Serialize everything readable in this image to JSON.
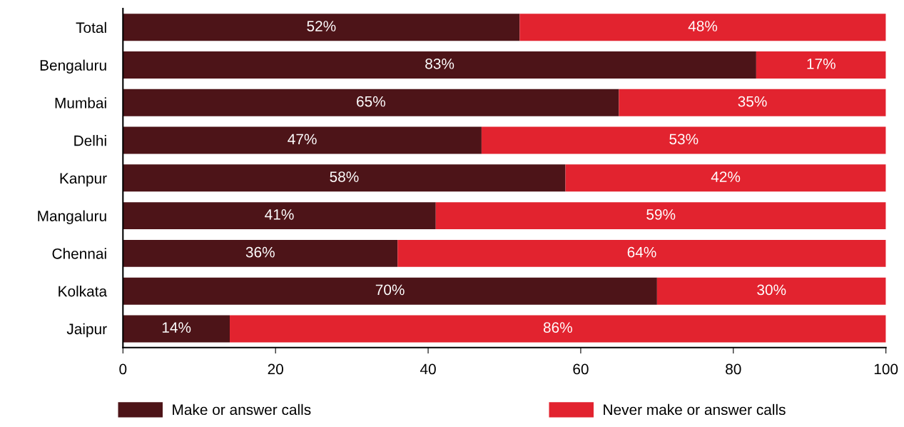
{
  "chart_data": {
    "type": "bar",
    "orientation": "horizontal",
    "stacked": true,
    "categories": [
      "Total",
      "Bengaluru",
      "Mumbai",
      "Delhi",
      "Kanpur",
      "Mangaluru",
      "Chennai",
      "Kolkata",
      "Jaipur"
    ],
    "series": [
      {
        "name": "Make or answer calls",
        "color": "#4d1418",
        "values": [
          52,
          83,
          65,
          47,
          58,
          41,
          36,
          70,
          14
        ],
        "value_labels": [
          "52%",
          "83%",
          "65%",
          "47%",
          "58%",
          "41%",
          "36%",
          "70%",
          "14%"
        ]
      },
      {
        "name": "Never make or answer calls",
        "color": "#e2232f",
        "values": [
          48,
          17,
          35,
          53,
          42,
          59,
          64,
          30,
          86
        ],
        "value_labels": [
          "48%",
          "17%",
          "35%",
          "53%",
          "42%",
          "59%",
          "64%",
          "30%",
          "86%"
        ]
      }
    ],
    "xlim": [
      0,
      100
    ],
    "xticks": [
      0,
      20,
      40,
      60,
      80,
      100
    ],
    "grid": false,
    "legend": "bottom"
  }
}
